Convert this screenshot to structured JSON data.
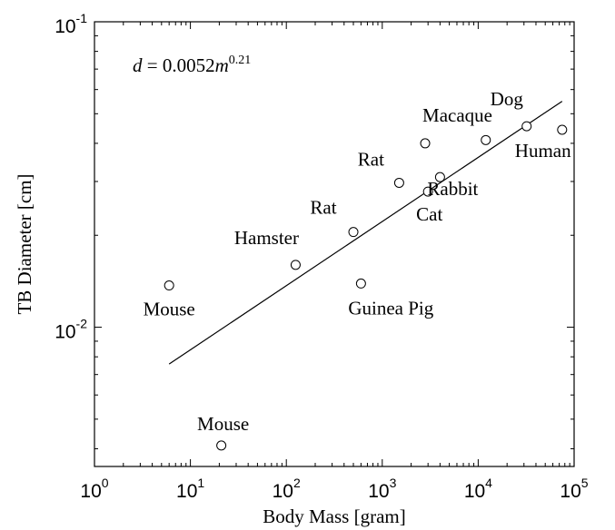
{
  "chart_data": {
    "type": "scatter",
    "xlabel": "Body Mass [gram]",
    "ylabel": "TB Diameter [cm]",
    "xscale": "log",
    "yscale": "log",
    "xlim": [
      1,
      100000
    ],
    "ylim": [
      0.0035,
      0.1
    ],
    "x_ticks": [
      {
        "value": 1,
        "base": "10",
        "exp": "0"
      },
      {
        "value": 10,
        "base": "10",
        "exp": "1"
      },
      {
        "value": 100,
        "base": "10",
        "exp": "2"
      },
      {
        "value": 1000,
        "base": "10",
        "exp": "3"
      },
      {
        "value": 10000,
        "base": "10",
        "exp": "4"
      },
      {
        "value": 100000,
        "base": "10",
        "exp": "5"
      }
    ],
    "y_ticks": [
      {
        "value": 0.01,
        "base": "10",
        "exp": "-2"
      },
      {
        "value": 0.1,
        "base": "10",
        "exp": "-1"
      }
    ],
    "grid": false,
    "points": [
      {
        "label": "Mouse",
        "x": 6,
        "y": 0.0137
      },
      {
        "label": "Mouse",
        "x": 21,
        "y": 0.0041
      },
      {
        "label": "Hamster",
        "x": 125,
        "y": 0.016
      },
      {
        "label": "Rat",
        "x": 500,
        "y": 0.0205
      },
      {
        "label": "Guinea Pig",
        "x": 600,
        "y": 0.0139
      },
      {
        "label": "Rat",
        "x": 1500,
        "y": 0.0297
      },
      {
        "label": "Macaque",
        "x": 2800,
        "y": 0.04
      },
      {
        "label": "Cat",
        "x": 3000,
        "y": 0.0278
      },
      {
        "label": "Rabbit",
        "x": 4000,
        "y": 0.031
      },
      {
        "label": "Dog",
        "x": 12000,
        "y": 0.041
      },
      {
        "label": "Dog",
        "x": 32000,
        "y": 0.0455
      },
      {
        "label": "Human",
        "x": 75000,
        "y": 0.0443
      }
    ],
    "fit": {
      "equation": {
        "lhs": "d",
        "eq": " = 0.0052",
        "var": "m",
        "exp": "0.21"
      },
      "a": 0.0052,
      "b": 0.21,
      "x_range": [
        6,
        75000
      ]
    }
  }
}
